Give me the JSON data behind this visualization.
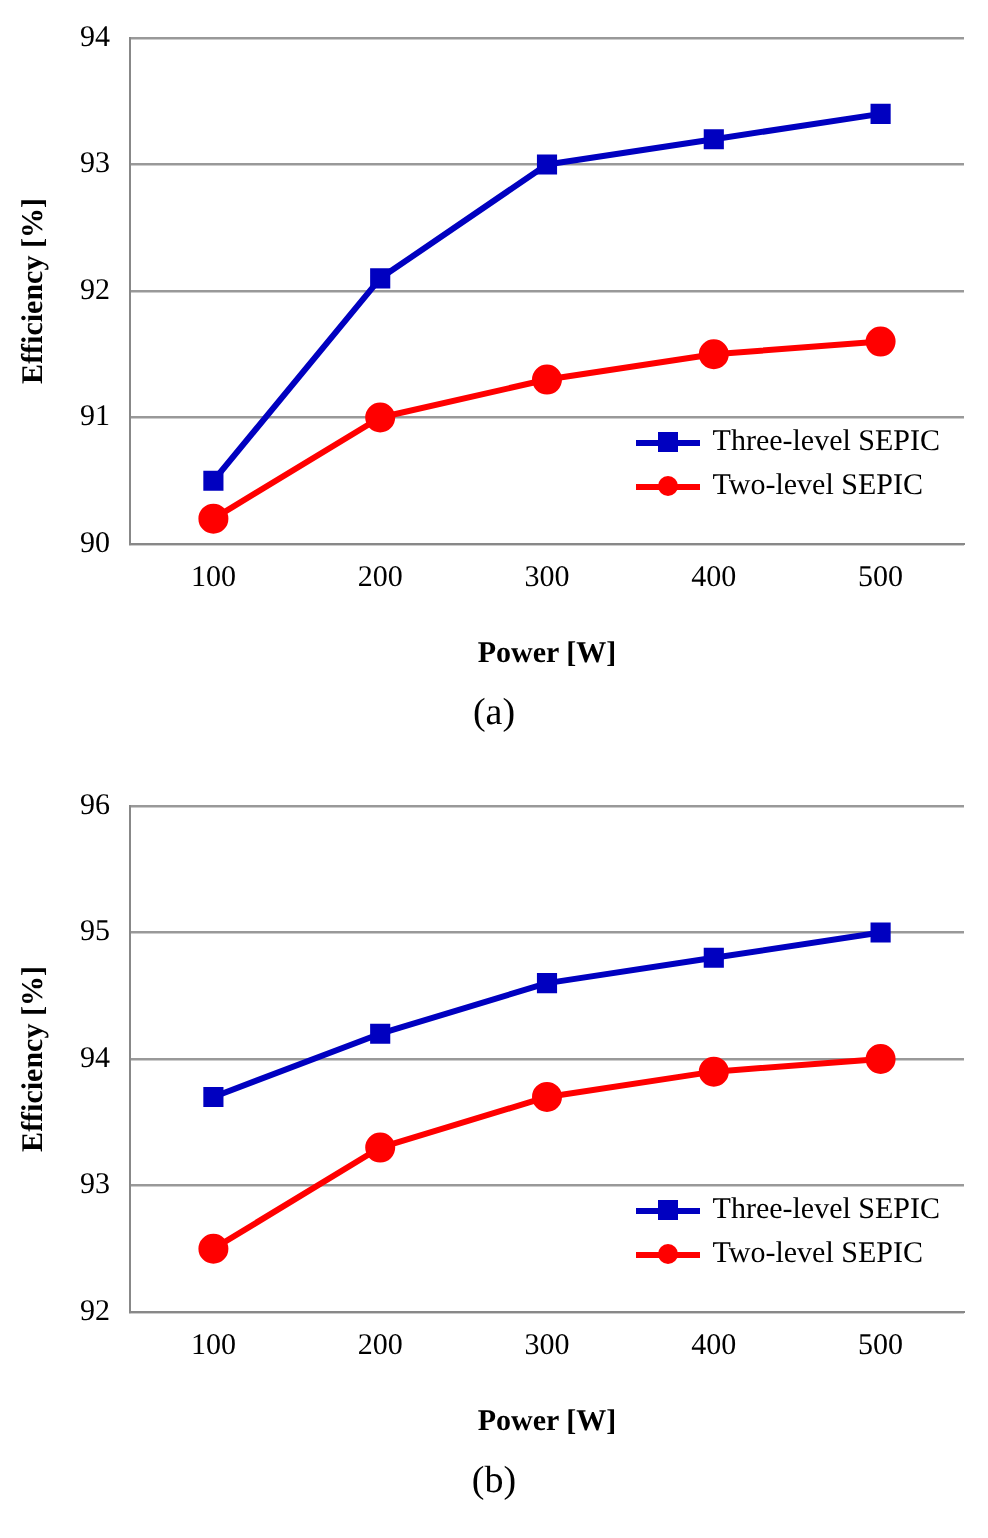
{
  "chart_data": [
    {
      "type": "line",
      "xlabel": "Power [W]",
      "ylabel": "Efficiency [%]",
      "categories": [
        "100",
        "200",
        "300",
        "400",
        "500"
      ],
      "series": [
        {
          "name": "Three-level SEPIC",
          "color": "#0000c0",
          "marker": "square",
          "values": [
            90.5,
            92.1,
            93.0,
            93.2,
            93.4
          ]
        },
        {
          "name": "Two-level SEPIC",
          "color": "#ff0000",
          "marker": "circle",
          "values": [
            90.2,
            91.0,
            91.3,
            91.5,
            91.6
          ]
        }
      ],
      "ylim": [
        90,
        94
      ],
      "yticks": [
        90,
        91,
        92,
        93,
        94
      ],
      "grid": "y",
      "legend": "bottom right",
      "annotations": [
        "(a)"
      ]
    },
    {
      "type": "line",
      "xlabel": "Power [W]",
      "ylabel": "Efficiency [%]",
      "categories": [
        "100",
        "200",
        "300",
        "400",
        "500"
      ],
      "series": [
        {
          "name": "Three-level SEPIC",
          "color": "#0000c0",
          "marker": "square",
          "values": [
            93.7,
            94.2,
            94.6,
            94.8,
            95.0
          ]
        },
        {
          "name": "Two-level SEPIC",
          "color": "#ff0000",
          "marker": "circle",
          "values": [
            92.5,
            93.3,
            93.7,
            93.9,
            94.0
          ]
        }
      ],
      "ylim": [
        92,
        96
      ],
      "yticks": [
        92,
        93,
        94,
        95,
        96
      ],
      "grid": "y",
      "legend": "bottom right",
      "annotations": [
        "(b)"
      ]
    }
  ]
}
